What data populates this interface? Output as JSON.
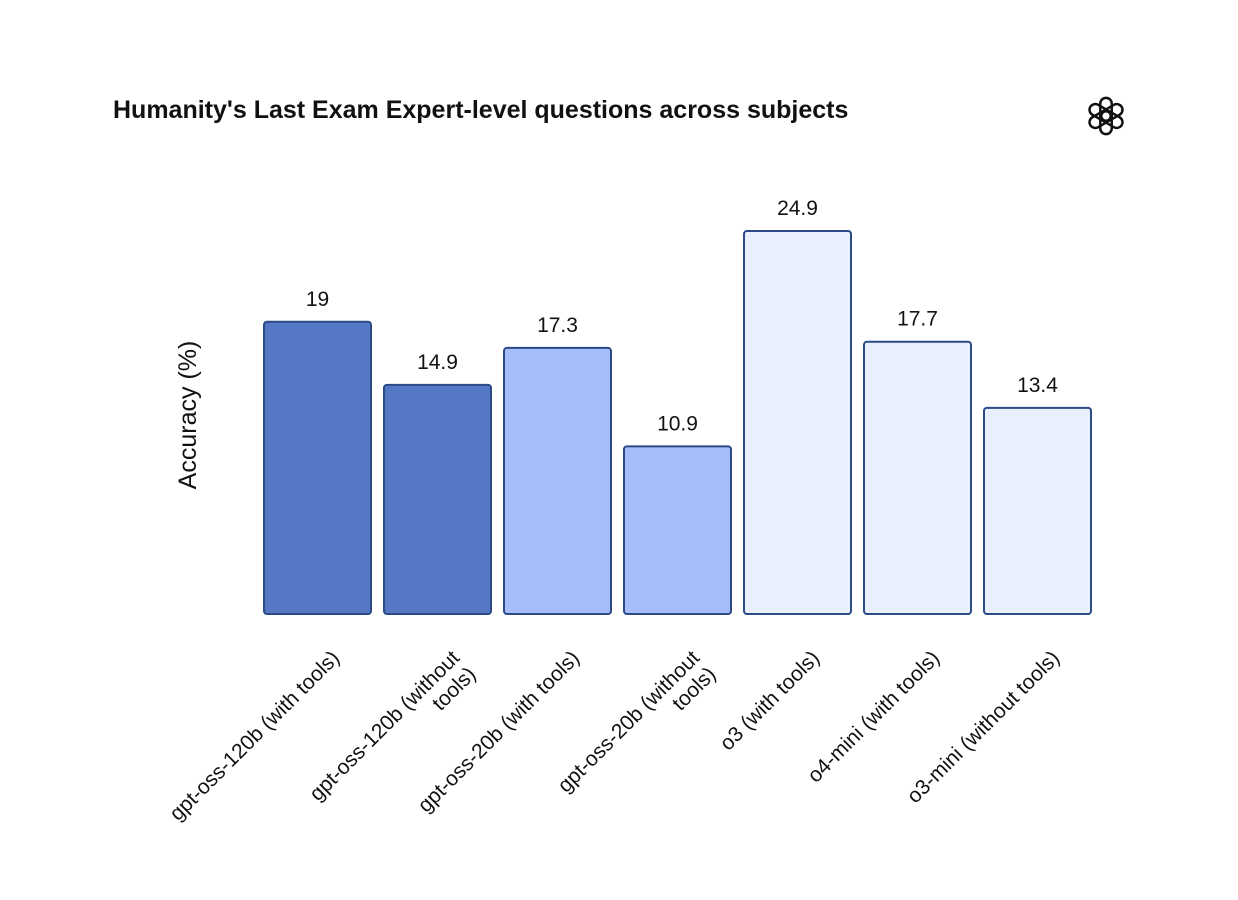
{
  "chart_data": {
    "type": "bar",
    "title": "Humanity's Last Exam Expert-level questions across subjects",
    "ylabel": "Accuracy (%)",
    "xlabel": "",
    "ylim": [
      0,
      24.9
    ],
    "grid": false,
    "categories": [
      "gpt-oss-120b (with tools)",
      "gpt-oss-120b (without tools)",
      "gpt-oss-20b (with tools)",
      "gpt-oss-20b (without tools)",
      "o3 (with tools)",
      "o4-mini (with tools)",
      "o3-mini (without tools)"
    ],
    "tick_labels": [
      [
        "gpt-oss-120b (with tools)"
      ],
      [
        "gpt-oss-120b (without",
        "tools)"
      ],
      [
        "gpt-oss-20b (with tools)"
      ],
      [
        "gpt-oss-20b (without",
        "tools)"
      ],
      [
        "o3 (with tools)"
      ],
      [
        "o4-mini (with tools)"
      ],
      [
        "o3-mini (without tools)"
      ]
    ],
    "values": [
      19,
      14.9,
      17.3,
      10.9,
      24.9,
      17.7,
      13.4
    ],
    "value_labels": [
      "19",
      "14.9",
      "17.3",
      "10.9",
      "24.9",
      "17.7",
      "13.4"
    ],
    "bar_colors": [
      "#5478c4",
      "#5478c4",
      "#a5bdfa",
      "#a5bdfa",
      "#e9effd",
      "#e9effd",
      "#e9effd"
    ],
    "bar_border_color": "#2b4a86"
  },
  "logo": {
    "icon": "openai-logo-icon",
    "color": "#111111"
  }
}
